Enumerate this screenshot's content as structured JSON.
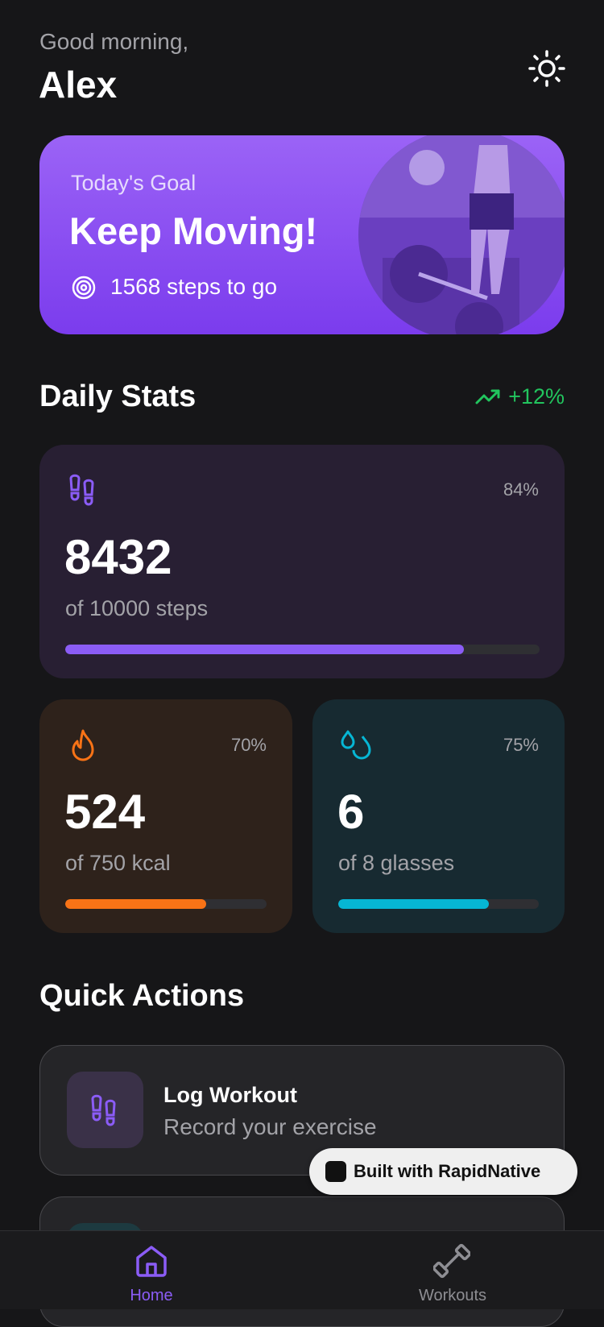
{
  "header": {
    "greeting": "Good morning,",
    "name": "Alex"
  },
  "goal_card": {
    "label": "Today's Goal",
    "title": "Keep Moving!",
    "subtitle": "1568 steps to go"
  },
  "daily_stats": {
    "title": "Daily Stats",
    "change": "+12%",
    "cards": [
      {
        "progress": {
          "value": 84,
          "label": "84%"
        },
        "value": 8432,
        "caption": "of 10000 steps"
      },
      {
        "progress": {
          "value": 70,
          "label": "70%"
        },
        "value": 524,
        "caption": "of 750 kcal"
      },
      {
        "progress": {
          "value": 75,
          "label": "75%"
        },
        "value": 6,
        "caption": "of 8 glasses"
      }
    ]
  },
  "quick_actions": {
    "title": "Quick Actions",
    "items": [
      {
        "title": "Log Workout",
        "subtitle": "Record your exercise"
      }
    ]
  },
  "badge": "Built with RapidNative",
  "nav": {
    "items": [
      "Home",
      "Workouts"
    ]
  }
}
